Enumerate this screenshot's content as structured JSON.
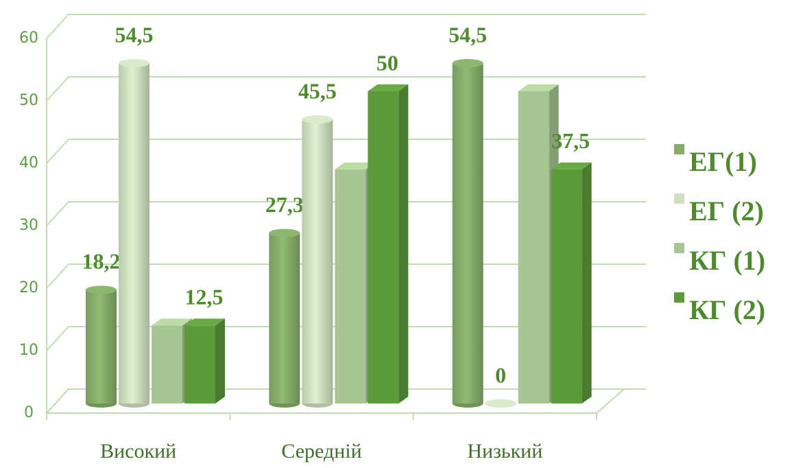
{
  "chart_data": {
    "type": "bar",
    "categories": [
      "Високий",
      "Середній",
      "Низький"
    ],
    "series": [
      {
        "name": "ЕГ(1)",
        "color": "#86ad6a",
        "values": [
          18.2,
          27.3,
          54.5
        ],
        "value_labels": [
          "18,2",
          "27,3",
          "54,5"
        ]
      },
      {
        "name": "ЕГ (2)",
        "color": "#cfe0c1",
        "values": [
          54.5,
          45.5,
          0
        ],
        "value_labels": [
          "54,5",
          "45,5",
          "0"
        ]
      },
      {
        "name": "КГ (1)",
        "color": "#a8c693",
        "values": [
          12.5,
          37.5,
          50
        ]
      },
      {
        "name": "КГ (2)",
        "color": "#5d9a3c",
        "values": [
          12.5,
          50,
          37.5
        ],
        "value_labels": [
          "12,5",
          "50",
          "37,5"
        ]
      }
    ],
    "ylim": [
      0,
      60
    ],
    "yticks": [
      0,
      10,
      20,
      30,
      40,
      50,
      60
    ],
    "grid": true
  }
}
